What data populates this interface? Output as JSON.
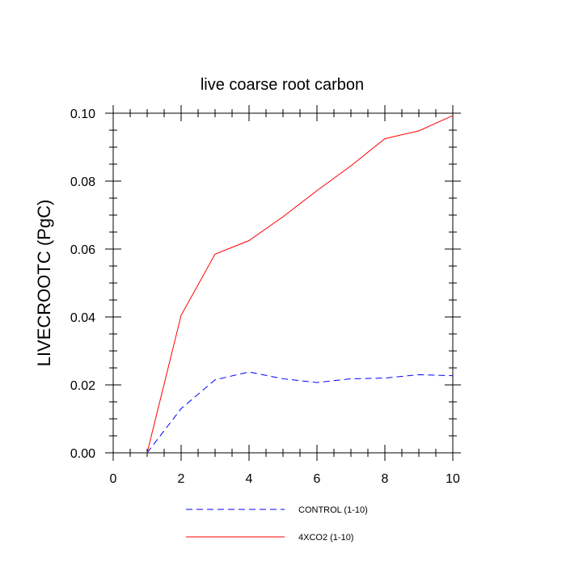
{
  "chart_data": {
    "type": "line",
    "title": "live coarse root carbon",
    "xlabel": "",
    "ylabel": "LIVECROOTC  (PgC)",
    "xlim": [
      0,
      10
    ],
    "ylim": [
      0,
      0.1
    ],
    "x_ticks": [
      0,
      2,
      4,
      6,
      8,
      10
    ],
    "x_tick_labels": [
      "0",
      "2",
      "4",
      "6",
      "8",
      "10"
    ],
    "y_ticks": [
      0,
      0.02,
      0.04,
      0.06,
      0.08,
      0.1
    ],
    "y_tick_labels": [
      "0.00",
      "0.02",
      "0.04",
      "0.06",
      "0.08",
      "0.10"
    ],
    "grid": false,
    "legend_position": "bottom",
    "x": [
      1,
      2,
      3,
      4,
      5,
      6,
      7,
      8,
      9,
      10
    ],
    "series": [
      {
        "name": "CONTROL (1-10)",
        "color": "#0000ff",
        "dashed": true,
        "values": [
          0.0,
          0.013,
          0.0215,
          0.0238,
          0.0218,
          0.0207,
          0.0218,
          0.022,
          0.023,
          0.0227
        ]
      },
      {
        "name": "4XCO2 (1-10)",
        "color": "#ff0000",
        "dashed": false,
        "values": [
          0.0,
          0.0405,
          0.0585,
          0.0625,
          0.0695,
          0.0772,
          0.0845,
          0.0925,
          0.0948,
          0.0993
        ]
      }
    ]
  }
}
